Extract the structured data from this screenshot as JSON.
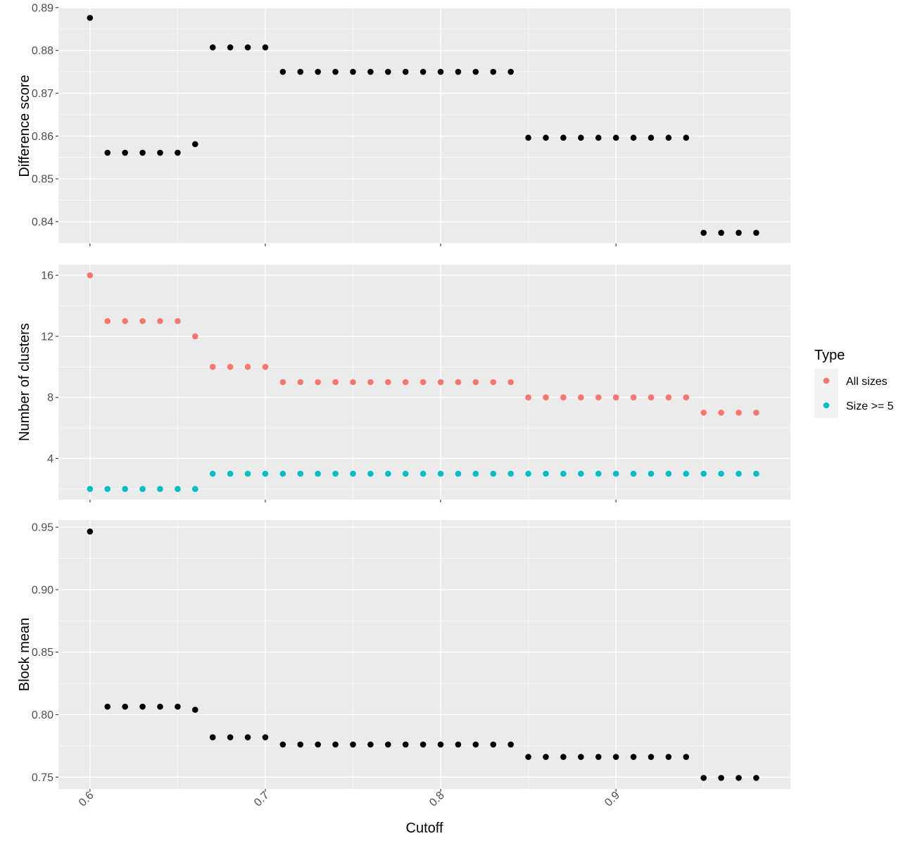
{
  "chart_data": {
    "type": "scatter",
    "x_title": "Cutoff",
    "x_range": [
      0.582,
      0.9995
    ],
    "x_ticks": [
      0.6,
      0.7,
      0.8,
      0.9
    ],
    "x_tick_labels": [
      "0.6",
      "0.7",
      "0.8",
      "0.9"
    ],
    "x": [
      0.6,
      0.61,
      0.62,
      0.63,
      0.64,
      0.65,
      0.66,
      0.67,
      0.68,
      0.69,
      0.7,
      0.71,
      0.72,
      0.73,
      0.74,
      0.75,
      0.76,
      0.77,
      0.78,
      0.79,
      0.8,
      0.81,
      0.82,
      0.83,
      0.84,
      0.85,
      0.86,
      0.87,
      0.88,
      0.89,
      0.9,
      0.91,
      0.92,
      0.93,
      0.94,
      0.95,
      0.96,
      0.97,
      0.98
    ],
    "grid": true,
    "panels": [
      {
        "ylabel": "Difference score",
        "y_range": [
          0.8349,
          0.8898
        ],
        "y_ticks": [
          0.84,
          0.85,
          0.86,
          0.87,
          0.88,
          0.89
        ],
        "y_tick_labels": [
          "0.84",
          "0.85",
          "0.86",
          "0.87",
          "0.88",
          "0.89"
        ],
        "series": [
          {
            "color": "#000000",
            "values": [
              0.8876,
              0.8561,
              0.8561,
              0.8561,
              0.8561,
              0.8561,
              0.8581,
              0.8807,
              0.8807,
              0.8807,
              0.8807,
              0.875,
              0.875,
              0.875,
              0.875,
              0.875,
              0.875,
              0.875,
              0.875,
              0.875,
              0.875,
              0.875,
              0.875,
              0.875,
              0.875,
              0.8596,
              0.8596,
              0.8596,
              0.8596,
              0.8596,
              0.8596,
              0.8596,
              0.8596,
              0.8596,
              0.8596,
              0.8374,
              0.8374,
              0.8374,
              0.8374
            ]
          }
        ]
      },
      {
        "ylabel": "Number of clusters",
        "y_range": [
          1.3,
          16.7
        ],
        "y_ticks": [
          4,
          8,
          12,
          16
        ],
        "y_tick_labels": [
          "4",
          "8",
          "12",
          "16"
        ],
        "series": [
          {
            "name": "All sizes",
            "color": "#F8766D",
            "values": [
              16,
              13,
              13,
              13,
              13,
              13,
              12,
              10,
              10,
              10,
              10,
              9,
              9,
              9,
              9,
              9,
              9,
              9,
              9,
              9,
              9,
              9,
              9,
              9,
              9,
              8,
              8,
              8,
              8,
              8,
              8,
              8,
              8,
              8,
              8,
              7,
              7,
              7,
              7
            ]
          },
          {
            "name": "Size >= 5",
            "color": "#00BFC4",
            "values": [
              2,
              2,
              2,
              2,
              2,
              2,
              2,
              3,
              3,
              3,
              3,
              3,
              3,
              3,
              3,
              3,
              3,
              3,
              3,
              3,
              3,
              3,
              3,
              3,
              3,
              3,
              3,
              3,
              3,
              3,
              3,
              3,
              3,
              3,
              3,
              3,
              3,
              3,
              3
            ]
          }
        ]
      },
      {
        "ylabel": "Block mean",
        "y_range": [
          0.7406,
          0.9557
        ],
        "y_ticks": [
          0.75,
          0.8,
          0.85,
          0.9,
          0.95
        ],
        "y_tick_labels": [
          "0.75",
          "0.80",
          "0.85",
          "0.90",
          "0.95"
        ],
        "series": [
          {
            "color": "#000000",
            "values": [
              0.9465,
              0.8064,
              0.8064,
              0.8064,
              0.8064,
              0.8064,
              0.8039,
              0.7819,
              0.7819,
              0.7819,
              0.7819,
              0.7761,
              0.7761,
              0.7761,
              0.7761,
              0.7761,
              0.7761,
              0.7761,
              0.7761,
              0.7761,
              0.7761,
              0.7761,
              0.7761,
              0.7761,
              0.7761,
              0.7662,
              0.7662,
              0.7662,
              0.7662,
              0.7662,
              0.7662,
              0.7662,
              0.7662,
              0.7662,
              0.7662,
              0.7494,
              0.7494,
              0.7494,
              0.7494
            ]
          }
        ]
      }
    ],
    "legend": {
      "title": "Type",
      "position": "right",
      "entries": [
        {
          "label": "All sizes",
          "color": "#F8766D"
        },
        {
          "label": "Size >= 5",
          "color": "#00BFC4"
        }
      ]
    }
  }
}
